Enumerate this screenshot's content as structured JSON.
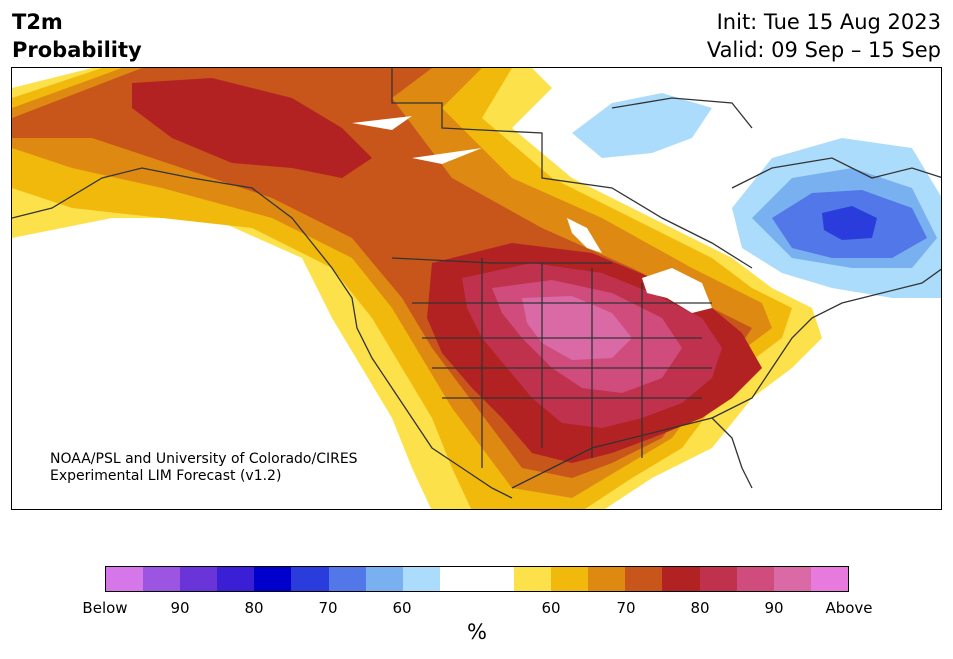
{
  "title": {
    "variable": "T2m",
    "kind": "Probability",
    "init": "Init: Tue 15 Aug 2023",
    "valid": "Valid: 09 Sep – 15 Sep"
  },
  "credit": {
    "line1": "NOAA/PSL and University of Colorado/CIRES",
    "line2": "Experimental LIM Forecast (v1.2)"
  },
  "colorbar": {
    "unit": "%",
    "tick_labels": [
      "Below",
      "90",
      "80",
      "70",
      "60",
      "60",
      "70",
      "80",
      "90",
      "Above"
    ],
    "colors": [
      "#d577e8",
      "#9b55e0",
      "#6a35d8",
      "#3a1fd4",
      "#0000cc",
      "#2a3ddc",
      "#5277e8",
      "#79b0f0",
      "#acdcfb",
      "#ffffff",
      "#ffffff",
      "#fde14a",
      "#f2b90d",
      "#de8a12",
      "#c8561b",
      "#b22222",
      "#c0314e",
      "#cf4c7c",
      "#d96aa6",
      "#e87ade"
    ]
  },
  "map": {
    "background": "#ffffff",
    "coast_color": "#333333",
    "region_colors": {
      "light_yellow": "#fde14a",
      "yellow": "#f2b90d",
      "orange": "#de8a12",
      "dark_orange": "#c8561b",
      "red": "#b22222",
      "crimson": "#c0314e",
      "rose": "#cf4c7c",
      "pink": "#d96aa6",
      "light_blue": "#acdcfb",
      "mid_blue": "#79b0f0",
      "blue": "#5277e8",
      "deep_blue": "#2a3ddc"
    }
  }
}
